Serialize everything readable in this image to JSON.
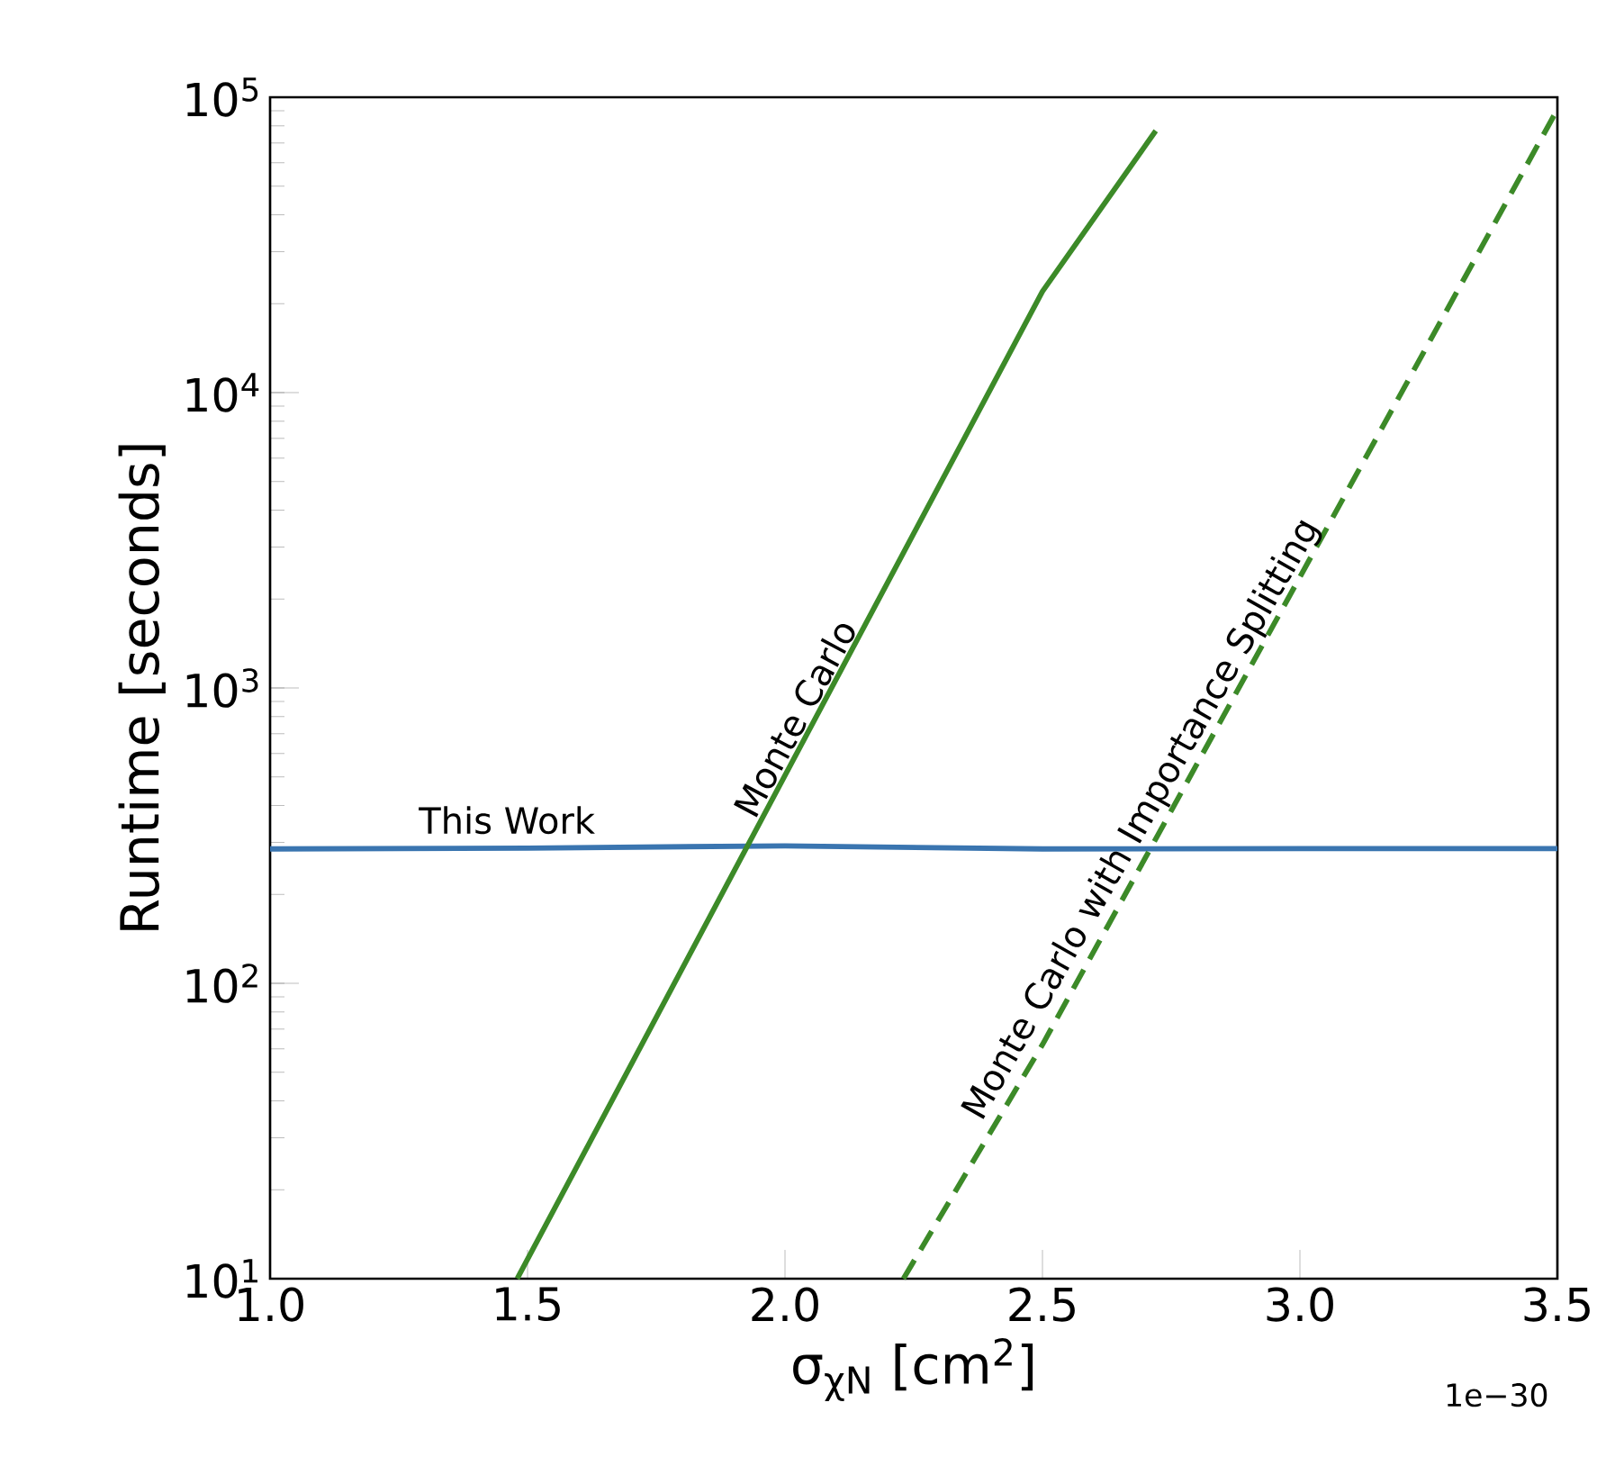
{
  "chart_data": {
    "type": "line",
    "xlabel": "σ$_{χN}$ [cm$^{2}$]",
    "ylabel": "Runtime [seconds]",
    "log": "y",
    "xlim": [
      1.0,
      3.5
    ],
    "ylim": [
      10,
      100000
    ],
    "xticks": [
      {
        "value": 1.0,
        "label": "1.0"
      },
      {
        "value": 1.5,
        "label": "1.5"
      },
      {
        "value": 2.0,
        "label": "2.0"
      },
      {
        "value": 2.5,
        "label": "2.5"
      },
      {
        "value": 3.0,
        "label": "3.0"
      },
      {
        "value": 3.5,
        "label": "3.5"
      }
    ],
    "yticks": [
      {
        "value": 10,
        "label": "10$^{1}$"
      },
      {
        "value": 100,
        "label": "10$^{2}$"
      },
      {
        "value": 1000,
        "label": "10$^{3}$"
      },
      {
        "value": 10000,
        "label": "10$^{4}$"
      },
      {
        "value": 100000,
        "label": "10$^{5}$"
      }
    ],
    "annotations": [
      "1e−30"
    ],
    "series": [
      {
        "name": "This Work",
        "color": "#3a75b0",
        "line_style": "solid",
        "x": [
          1.0,
          1.5,
          2.0,
          2.5,
          3.0,
          3.5
        ],
        "values": [
          285,
          287,
          292,
          285,
          286,
          286
        ]
      },
      {
        "name": "Monte Carlo",
        "color": "#3c8a28",
        "line_style": "solid",
        "x": [
          1.48,
          2.5,
          2.72
        ],
        "values": [
          10,
          22000,
          77000
        ]
      },
      {
        "name": "Monte Carlo with Importance Splitting",
        "color": "#3c8a28",
        "line_style": "dashed",
        "x": [
          2.23,
          2.5,
          3.5
        ],
        "values": [
          10,
          62,
          91000
        ]
      }
    ]
  }
}
